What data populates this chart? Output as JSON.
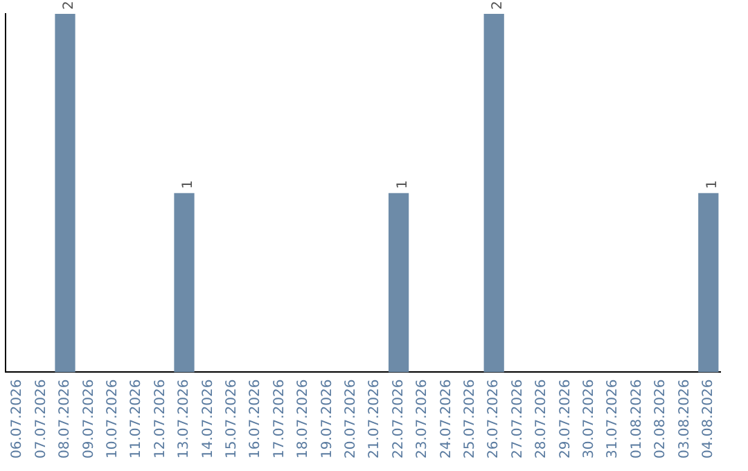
{
  "chart_data": {
    "type": "bar",
    "categories": [
      "06.07.2026",
      "07.07.2026",
      "08.07.2026",
      "09.07.2026",
      "10.07.2026",
      "11.07.2026",
      "12.07.2026",
      "13.07.2026",
      "14.07.2026",
      "15.07.2026",
      "16.07.2026",
      "17.07.2026",
      "18.07.2026",
      "19.07.2026",
      "20.07.2026",
      "21.07.2026",
      "22.07.2026",
      "23.07.2026",
      "24.07.2026",
      "25.07.2026",
      "26.07.2026",
      "27.07.2026",
      "28.07.2026",
      "29.07.2026",
      "30.07.2026",
      "31.07.2026",
      "01.08.2026",
      "02.08.2026",
      "03.08.2026",
      "04.08.2026"
    ],
    "values": [
      0,
      0,
      2,
      0,
      0,
      0,
      0,
      1,
      0,
      0,
      0,
      0,
      0,
      0,
      0,
      0,
      1,
      0,
      0,
      0,
      2,
      0,
      0,
      0,
      0,
      0,
      0,
      0,
      0,
      1
    ],
    "value_labels": [
      null,
      null,
      "2",
      null,
      null,
      null,
      null,
      "1",
      null,
      null,
      null,
      null,
      null,
      null,
      null,
      null,
      "1",
      null,
      null,
      null,
      "2",
      null,
      null,
      null,
      null,
      null,
      null,
      null,
      null,
      "1"
    ],
    "color": "#6d8ba8",
    "tick_labels": "x",
    "grid": false,
    "legend": false
  }
}
